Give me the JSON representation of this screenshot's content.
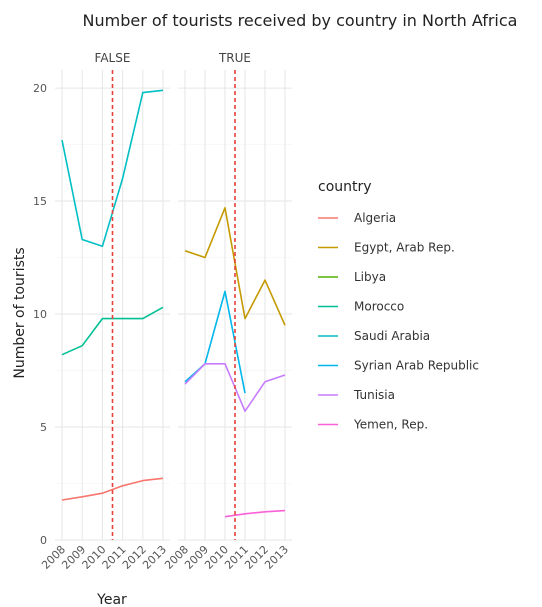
{
  "chart_data": {
    "type": "line",
    "title": "Number of tourists received by country in North Africa",
    "xlabel": "Year",
    "ylabel": "Number of tourists",
    "ylim": [
      0,
      20.8
    ],
    "xlim": [
      2008,
      2013
    ],
    "y_ticks": [
      "0",
      "5",
      "10",
      "15",
      "20"
    ],
    "x_ticks": [
      "2008",
      "2009",
      "2010",
      "2011",
      "2012",
      "2013"
    ],
    "facets": [
      "FALSE",
      "TRUE"
    ],
    "reference_line": {
      "x": 2010.5,
      "style": "dashed",
      "color": "#e8403a"
    },
    "grid": true,
    "legend": {
      "title": "country",
      "position": "right"
    },
    "series": [
      {
        "name": "Algeria",
        "color": "#f8766d",
        "facet": "FALSE",
        "x": [
          2008,
          2009,
          2010,
          2011,
          2012,
          2013
        ],
        "values": [
          1.77,
          1.91,
          2.07,
          2.4,
          2.63,
          2.73
        ]
      },
      {
        "name": "Egypt, Arab Rep.",
        "color": "#c49a00",
        "facet": "TRUE",
        "x": [
          2008,
          2009,
          2010,
          2011,
          2012,
          2013
        ],
        "values": [
          12.8,
          12.5,
          14.7,
          9.8,
          11.5,
          9.5
        ]
      },
      {
        "name": "Libya",
        "color": "#53b400",
        "facet": "TRUE",
        "x": [],
        "values": []
      },
      {
        "name": "Morocco",
        "color": "#00c094",
        "facet": "FALSE",
        "x": [
          2008,
          2009,
          2010,
          2011,
          2012,
          2013
        ],
        "values": [
          8.2,
          8.6,
          9.8,
          9.8,
          9.8,
          10.3
        ]
      },
      {
        "name": "Saudi Arabia",
        "color": "#00bfc4",
        "facet": "FALSE",
        "x": [
          2008,
          2009,
          2010,
          2011,
          2012,
          2013
        ],
        "values": [
          17.7,
          13.3,
          13.0,
          16.0,
          19.8,
          19.9
        ]
      },
      {
        "name": "Syrian Arab Republic",
        "color": "#00b6eb",
        "facet": "TRUE",
        "x": [
          2008,
          2009,
          2010,
          2011
        ],
        "values": [
          7.0,
          7.8,
          11.0,
          6.5
        ]
      },
      {
        "name": "Tunisia",
        "color": "#c77cff",
        "facet": "TRUE",
        "x": [
          2008,
          2009,
          2010,
          2011,
          2012,
          2013
        ],
        "values": [
          6.9,
          7.8,
          7.8,
          5.7,
          7.0,
          7.3
        ]
      },
      {
        "name": "Yemen, Rep.",
        "color": "#fb61d7",
        "facet": "TRUE",
        "x": [
          2010,
          2011,
          2012,
          2013
        ],
        "values": [
          1.03,
          1.16,
          1.25,
          1.3
        ]
      }
    ]
  }
}
